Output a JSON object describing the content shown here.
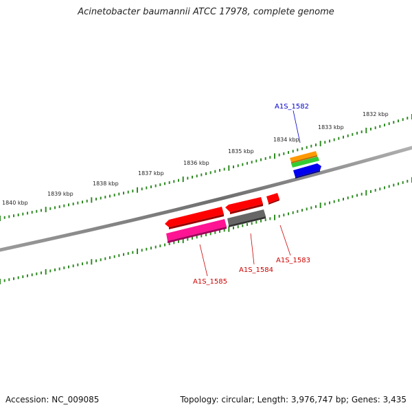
{
  "title": "Acinetobacter baumannii ATCC 17978, complete genome",
  "footer": {
    "accession": "Accession: NC_009085",
    "summary": "Topology: circular; Length: 3,976,747 bp; Genes: 3,435"
  },
  "ruler_labels": [
    "1832 kbp",
    "1833 kbp",
    "1834 kbp",
    "1835 kbp",
    "1836 kbp",
    "1837 kbp",
    "1838 kbp",
    "1839 kbp",
    "1840 kbp"
  ],
  "genes": [
    {
      "id": "A1S_1582",
      "label": "A1S_1582",
      "strand": "+",
      "color": "#0000cc"
    },
    {
      "id": "A1S_1583",
      "label": "A1S_1583",
      "strand": "-",
      "color": "#cc0000"
    },
    {
      "id": "A1S_1584",
      "label": "A1S_1584",
      "strand": "-",
      "color": "#cc0000"
    },
    {
      "id": "A1S_1585",
      "label": "A1S_1585",
      "strand": "-",
      "color": "#cc0000"
    }
  ],
  "colors": {
    "backbone": "#808080",
    "ticks": "#2e8b22",
    "orange_track": "#ff9900",
    "green_track": "#33cc33",
    "blue_feature": "#0000ee",
    "red_feature": "#ff0000",
    "gray_feature": "#666666",
    "pink_feature": "#ff1493"
  }
}
